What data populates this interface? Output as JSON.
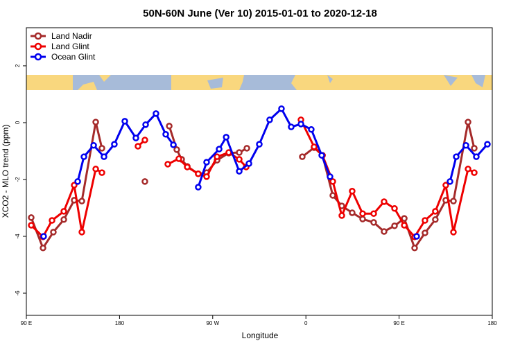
{
  "chart_data": {
    "type": "line",
    "title": "50N-60N June (Ver 10)   2015-01-01 to 2020-12-18",
    "xlabel": "Longitude",
    "ylabel": "XCO2 - MLO trend (ppm)",
    "xlim": [
      90,
      540
    ],
    "ylim": [
      -6.78,
      3.34
    ],
    "xticks": [
      {
        "value": 90,
        "label": "90 E"
      },
      180,
      {
        "value": 270,
        "label": "90 W"
      },
      {
        "value": 360,
        "label": "0"
      },
      {
        "value": 450,
        "label": "90 E"
      },
      {
        "value": 540,
        "label": "180"
      }
    ],
    "yticks": [
      -6,
      -4,
      -2,
      0,
      2
    ],
    "legend": "top-left",
    "series": [
      {
        "name": "Land Nadir",
        "color": "#a52a2a",
        "x": [
          94.7,
          106.1,
          116.1,
          126.2,
          136.2,
          143.6,
          157,
          163,
          null,
          204.5,
          null,
          228,
          235.3,
          240,
          245.4,
          256,
          264.1,
          274.2,
          285.5,
          295.6,
          303,
          null,
          356.5,
          367.9,
          376,
          386,
          394.7,
          404.7,
          414.8,
          425.5,
          435.5,
          445.6,
          455,
          465,
          475,
          485,
          495.1,
          502.5,
          516.6,
          522.6
        ],
        "values": [
          -3.34,
          -4.41,
          -3.85,
          -3.41,
          -2.73,
          -2.76,
          0.02,
          -0.9,
          null,
          -2.07,
          null,
          -0.12,
          -0.95,
          -1.29,
          -1.54,
          -1.8,
          -1.76,
          -1.32,
          -1.07,
          -1.05,
          -0.9,
          null,
          -1.2,
          -0.88,
          -1.15,
          -2.56,
          -2.93,
          -3.17,
          -3.39,
          -3.51,
          -3.83,
          -3.63,
          -3.37,
          -4.41,
          -3.88,
          -3.41,
          -2.73,
          -2.76,
          0.02,
          -0.9
        ]
      },
      {
        "name": "Land Glint",
        "color": "#ee0000",
        "x": [
          94.7,
          106.1,
          114.8,
          126.2,
          136.2,
          143.6,
          157,
          163,
          null,
          197.8,
          204.5,
          null,
          226.6,
          237.3,
          245.4,
          256,
          264.1,
          274.2,
          285.5,
          295.6,
          302.3,
          null,
          355.2,
          367.9,
          376,
          386,
          394.7,
          404.7,
          414.8,
          425.5,
          435.5,
          445.6,
          455,
          465,
          475,
          485,
          495.1,
          502.5,
          516.6,
          522.6
        ],
        "values": [
          -3.61,
          -4.02,
          -3.44,
          -3.12,
          -2.2,
          -3.85,
          -1.63,
          -1.76,
          null,
          -0.83,
          -0.61,
          null,
          -1.46,
          -1.27,
          -1.56,
          -1.8,
          -1.9,
          -1.2,
          -1.05,
          -1.29,
          -1.56,
          null,
          0.1,
          -0.85,
          -1.15,
          -2.07,
          -3.27,
          -2.41,
          -3.2,
          -3.2,
          -2.78,
          -3.02,
          -3.61,
          -4.02,
          -3.44,
          -3.12,
          -2.2,
          -3.85,
          -1.63,
          -1.76
        ]
      },
      {
        "name": "Ocean Glint",
        "color": "#0000ee",
        "x": [
          106.7,
          null,
          139.6,
          145.6,
          155,
          165,
          175,
          185.1,
          195.8,
          205.2,
          215.2,
          224.6,
          232,
          null,
          256,
          264.1,
          276.2,
          283,
          295.6,
          305,
          315,
          325,
          336.4,
          345.8,
          355.2,
          365.2,
          375.3,
          383.3,
          null,
          467,
          null,
          499.2,
          505.2,
          514.6,
          524.6,
          535.3
        ],
        "values": [
          -4.0,
          null,
          -2.07,
          -1.2,
          -0.8,
          -1.2,
          -0.76,
          0.05,
          -0.54,
          -0.07,
          0.32,
          -0.41,
          -0.78,
          null,
          -2.27,
          -1.39,
          -0.93,
          -0.51,
          -1.71,
          -1.44,
          -0.76,
          0.1,
          0.49,
          -0.15,
          -0.05,
          -0.24,
          -1.15,
          -1.9,
          null,
          -4.0,
          null,
          -2.07,
          -1.2,
          -0.8,
          -1.2,
          -0.76
        ]
      }
    ]
  }
}
